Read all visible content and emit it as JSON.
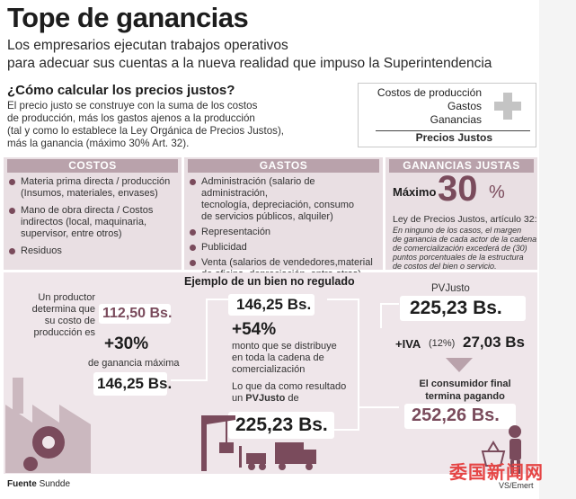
{
  "header": {
    "title": "Tope de ganancias",
    "subtitle_line1": "Los empresarios ejecutan trabajos operativos",
    "subtitle_line2": "para adecuar sus cuentas a la nueva realidad que impuso la Superintendencia"
  },
  "intro": {
    "question": "¿Cómo calcular los precios justos?",
    "lines": [
      "El precio justo se construye con la suma de los costos",
      "de producción, más los gastos ajenos a la producción",
      "(tal y como lo establece la Ley Orgánica de Precios Justos),",
      "más la ganancia (máximo 30% Art. 32)."
    ]
  },
  "formula": {
    "rows": [
      "Costos de producción",
      "Gastos",
      "Ganancias"
    ],
    "total": "Precios Justos"
  },
  "costos": {
    "heading": "COSTOS",
    "items": [
      [
        "Materia prima directa / producción",
        "(Insumos, materiales, envases)"
      ],
      [
        "Mano de obra directa / Costos",
        "indirectos (local, maquinaria,",
        "supervisor, entre otros)"
      ],
      [
        "Residuos"
      ]
    ]
  },
  "gastos": {
    "heading": "GASTOS",
    "items": [
      [
        "Administración (salario de administración,",
        "tecnología, depreciación, consumo",
        "de servicios públicos, alquiler)"
      ],
      [
        "Representación"
      ],
      [
        "Publicidad"
      ],
      [
        "Venta (salarios de vendedores,material",
        "de oficina, depreciación, entre otros)"
      ]
    ]
  },
  "ganancias": {
    "heading": "GANANCIAS JUSTAS",
    "max_label": "Máximo",
    "max_value": "30",
    "pct": "%",
    "law": "Ley de Precios Justos, artículo 32:",
    "note": [
      "En ninguno de los casos, el margen",
      "de ganancia de cada actor de la cadena",
      "de comercialización excederá de (30)",
      "puntos porcentuales de la estructura",
      "de costos del bien o servicio."
    ]
  },
  "example": {
    "title": "Ejemplo de un bien no regulado",
    "producer_text": [
      "Un productor",
      "determina que",
      "su costo de",
      "producción es"
    ],
    "cost": "112,50 Bs.",
    "plus30": "+30%",
    "plus30_label": "de ganancia máxima",
    "result1": "146,25 Bs.",
    "mid_value": "146,25 Bs.",
    "plus54": "+54%",
    "plus54_label": [
      "monto que se distribuye",
      "en toda la cadena de",
      "comercialización"
    ],
    "result_label_1": "Lo que da como resultado",
    "result_label_2_prefix": "un ",
    "result_label_2_bold": "PVJusto",
    "result_label_2_suffix": " de",
    "pvjusto_value": "225,23 Bs.",
    "pv_head": "PVJusto",
    "pv_value": "225,23 Bs.",
    "iva_label": "+IVA",
    "iva_pct": "(12%)",
    "iva_value": "27,03 Bs",
    "consumer_line1": "El consumidor final",
    "consumer_line2": "termina pagando",
    "final_value": "252,26 Bs."
  },
  "footer": {
    "source_label": "Fuente",
    "source_value": "Sundde",
    "credit": "VS/Emert",
    "watermark": "委国新闻网"
  },
  "colors": {
    "accent": "#7a4b5c",
    "header_band": "#b9a2ab",
    "column_bg": "#e9dfe3",
    "bottom_bg": "#efe6ea"
  }
}
